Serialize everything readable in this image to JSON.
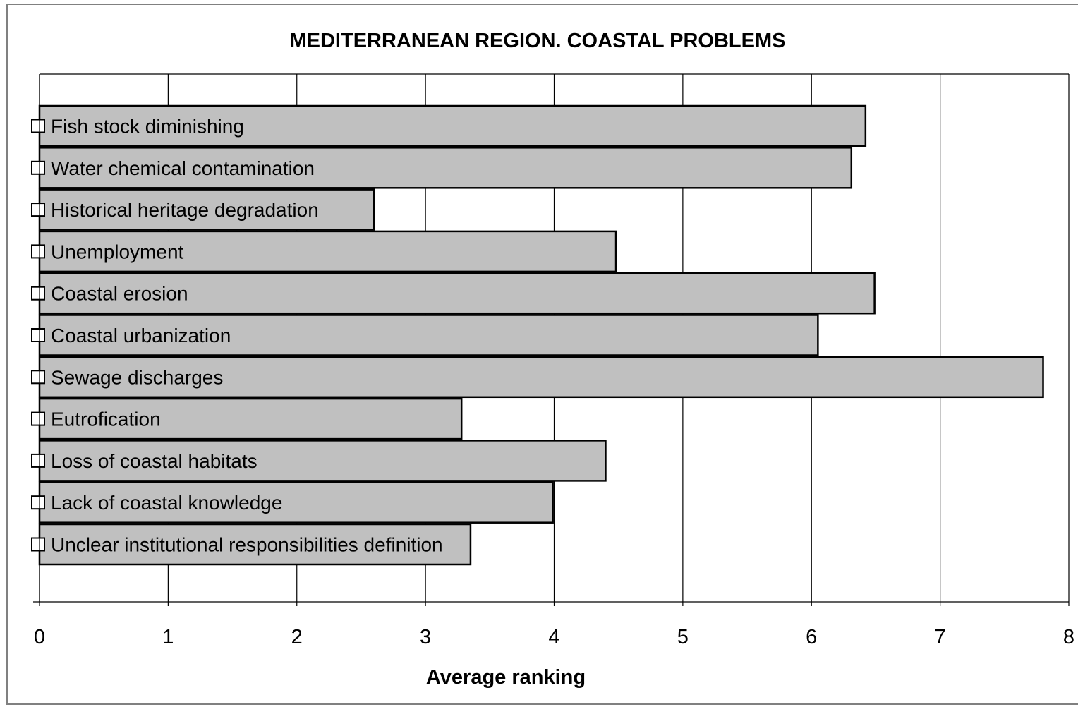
{
  "chart_data": {
    "type": "bar",
    "orientation": "horizontal",
    "title": "MEDITERRANEAN REGION. COASTAL PROBLEMS",
    "xlabel": "Average ranking",
    "ylabel": "",
    "xlim": [
      0,
      8
    ],
    "xticks": [
      "0",
      "1",
      "2",
      "3",
      "4",
      "5",
      "6",
      "7",
      "8"
    ],
    "grid": true,
    "bar_color": "#c0c0c0",
    "categories": [
      "Fish stock diminishing",
      "Water chemical contamination",
      "Historical heritage degradation",
      "Unemployment",
      "Coastal erosion",
      "Coastal urbanization",
      "Sewage discharges",
      "Eutrofication",
      "Loss of coastal habitats",
      "Lack of coastal knowledge",
      "Unclear institutional responsibilities definition"
    ],
    "values": [
      6.42,
      6.31,
      2.6,
      4.48,
      6.49,
      6.05,
      7.8,
      3.28,
      4.4,
      3.99,
      3.35
    ]
  }
}
